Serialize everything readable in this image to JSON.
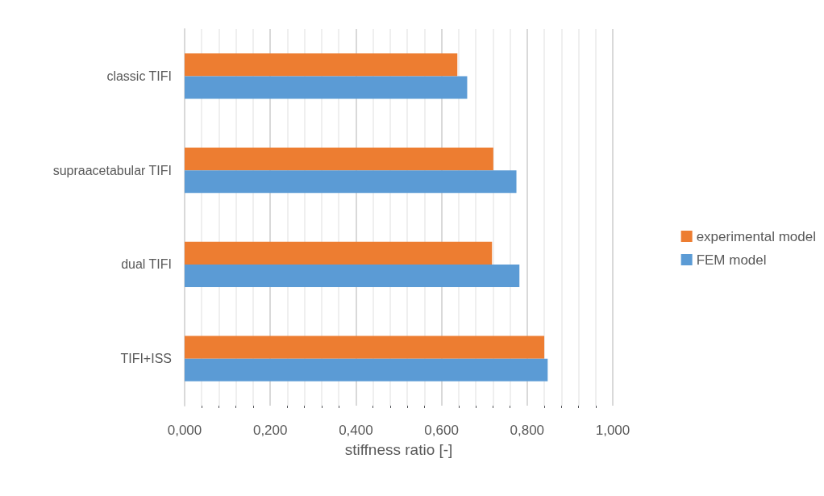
{
  "chart_data": {
    "type": "bar",
    "orientation": "horizontal",
    "xlabel": "stiffness ratio [-]",
    "categories": [
      "classic TIFI",
      "supraacetabular TIFI",
      "dual TIFI",
      "TIFI+ISS"
    ],
    "series": [
      {
        "name": "experimental model",
        "color": "#ed7d31",
        "values": [
          0.637,
          0.721,
          0.718,
          0.84
        ]
      },
      {
        "name": "FEM model",
        "color": "#5b9bd5",
        "values": [
          0.66,
          0.775,
          0.782,
          0.848
        ]
      }
    ],
    "xlim": [
      0,
      1
    ],
    "xticks": [
      {
        "value": 0,
        "label": "0,000"
      },
      {
        "value": 0.2,
        "label": "0,200"
      },
      {
        "value": 0.4,
        "label": "0,400"
      },
      {
        "value": 0.6,
        "label": "0,600"
      },
      {
        "value": 0.8,
        "label": "0,800"
      },
      {
        "value": 1,
        "label": "1,000"
      }
    ],
    "grid": "x",
    "legend": "right"
  }
}
